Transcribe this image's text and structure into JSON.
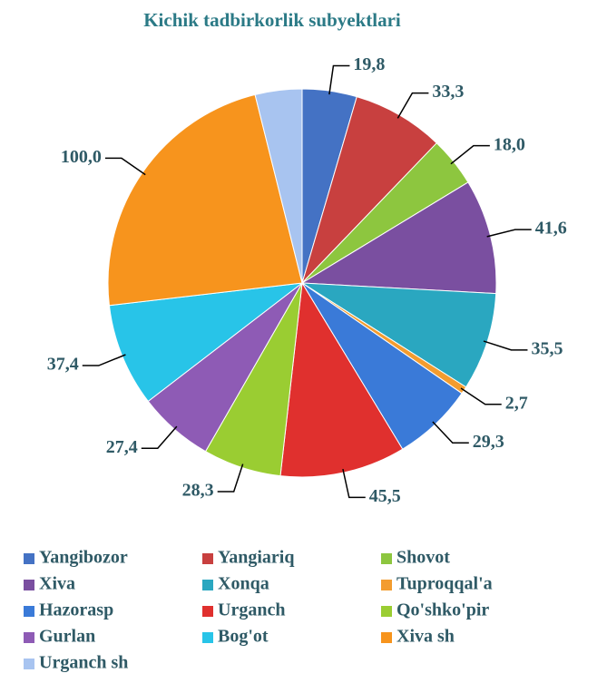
{
  "chart_data": {
    "type": "pie",
    "title": "Kichik tadbirkorlik subyektlari",
    "categories": [
      "Yangibozor",
      "Yangiariq",
      "Shovot",
      "Xiva",
      "Xonqa",
      "Tuproqqal'a",
      "Hazorasp",
      "Urganch",
      "Qo'shko'pir",
      "Gurlan",
      "Bog'ot",
      "Xiva sh",
      "Urganch sh"
    ],
    "values": [
      19.8,
      33.3,
      18.0,
      41.6,
      35.5,
      2.7,
      29.3,
      45.5,
      28.3,
      27.4,
      37.4,
      100.0,
      17
    ],
    "value_labels": [
      "19,8",
      "33,3",
      "18,0",
      "41,6",
      "35,5",
      "2,7",
      "29,3",
      "45,5",
      "28,3",
      "27,4",
      "37,4",
      "100,0",
      null
    ],
    "colors": [
      "#4472c4",
      "#c8403f",
      "#8dc63f",
      "#7a4fa0",
      "#2aa7c0",
      "#f39c2f",
      "#3a7ad8",
      "#e0302e",
      "#9acd32",
      "#8e5bb5",
      "#28c4e8",
      "#f7941d",
      "#a8c4f0"
    ],
    "legend": "bottom"
  }
}
